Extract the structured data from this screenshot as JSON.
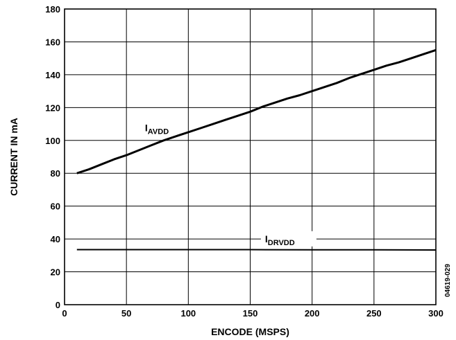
{
  "chart_data": {
    "type": "line",
    "xlabel": "ENCODE (MSPS)",
    "ylabel": "CURRENT IN mA",
    "xlim": [
      0,
      300
    ],
    "ylim": [
      0,
      180
    ],
    "x_ticks": [
      0,
      50,
      100,
      150,
      200,
      250,
      300
    ],
    "y_ticks": [
      0,
      20,
      40,
      60,
      80,
      100,
      120,
      140,
      160,
      180
    ],
    "x_tick_labels": [
      "0",
      "50",
      "100",
      "150",
      "200",
      "250",
      "300"
    ],
    "y_tick_labels": [
      "0",
      "20",
      "40",
      "60",
      "80",
      "100",
      "120",
      "140",
      "160",
      "180"
    ],
    "grid": true,
    "series": [
      {
        "name_main": "I",
        "name_sub": "AVDD",
        "x": [
          10,
          20,
          30,
          40,
          50,
          60,
          70,
          80,
          90,
          100,
          110,
          120,
          130,
          140,
          150,
          160,
          170,
          180,
          190,
          200,
          210,
          220,
          230,
          240,
          250,
          260,
          270,
          280,
          290,
          300
        ],
        "y": [
          80,
          82.5,
          85.5,
          88.5,
          91,
          94,
          97,
          100,
          102.5,
          105,
          107.5,
          110,
          112.5,
          115,
          117.5,
          120.5,
          123,
          125.5,
          127.5,
          130,
          132.5,
          135,
          138,
          140.5,
          143,
          145.5,
          147.5,
          150,
          152.5,
          155
        ]
      },
      {
        "name_main": "I",
        "name_sub": "DRVDD",
        "x": [
          10,
          50,
          100,
          150,
          200,
          250,
          300
        ],
        "y": [
          33.5,
          33.5,
          33.5,
          33.5,
          33.4,
          33.4,
          33.3
        ]
      }
    ],
    "side_label": "04619-029"
  }
}
